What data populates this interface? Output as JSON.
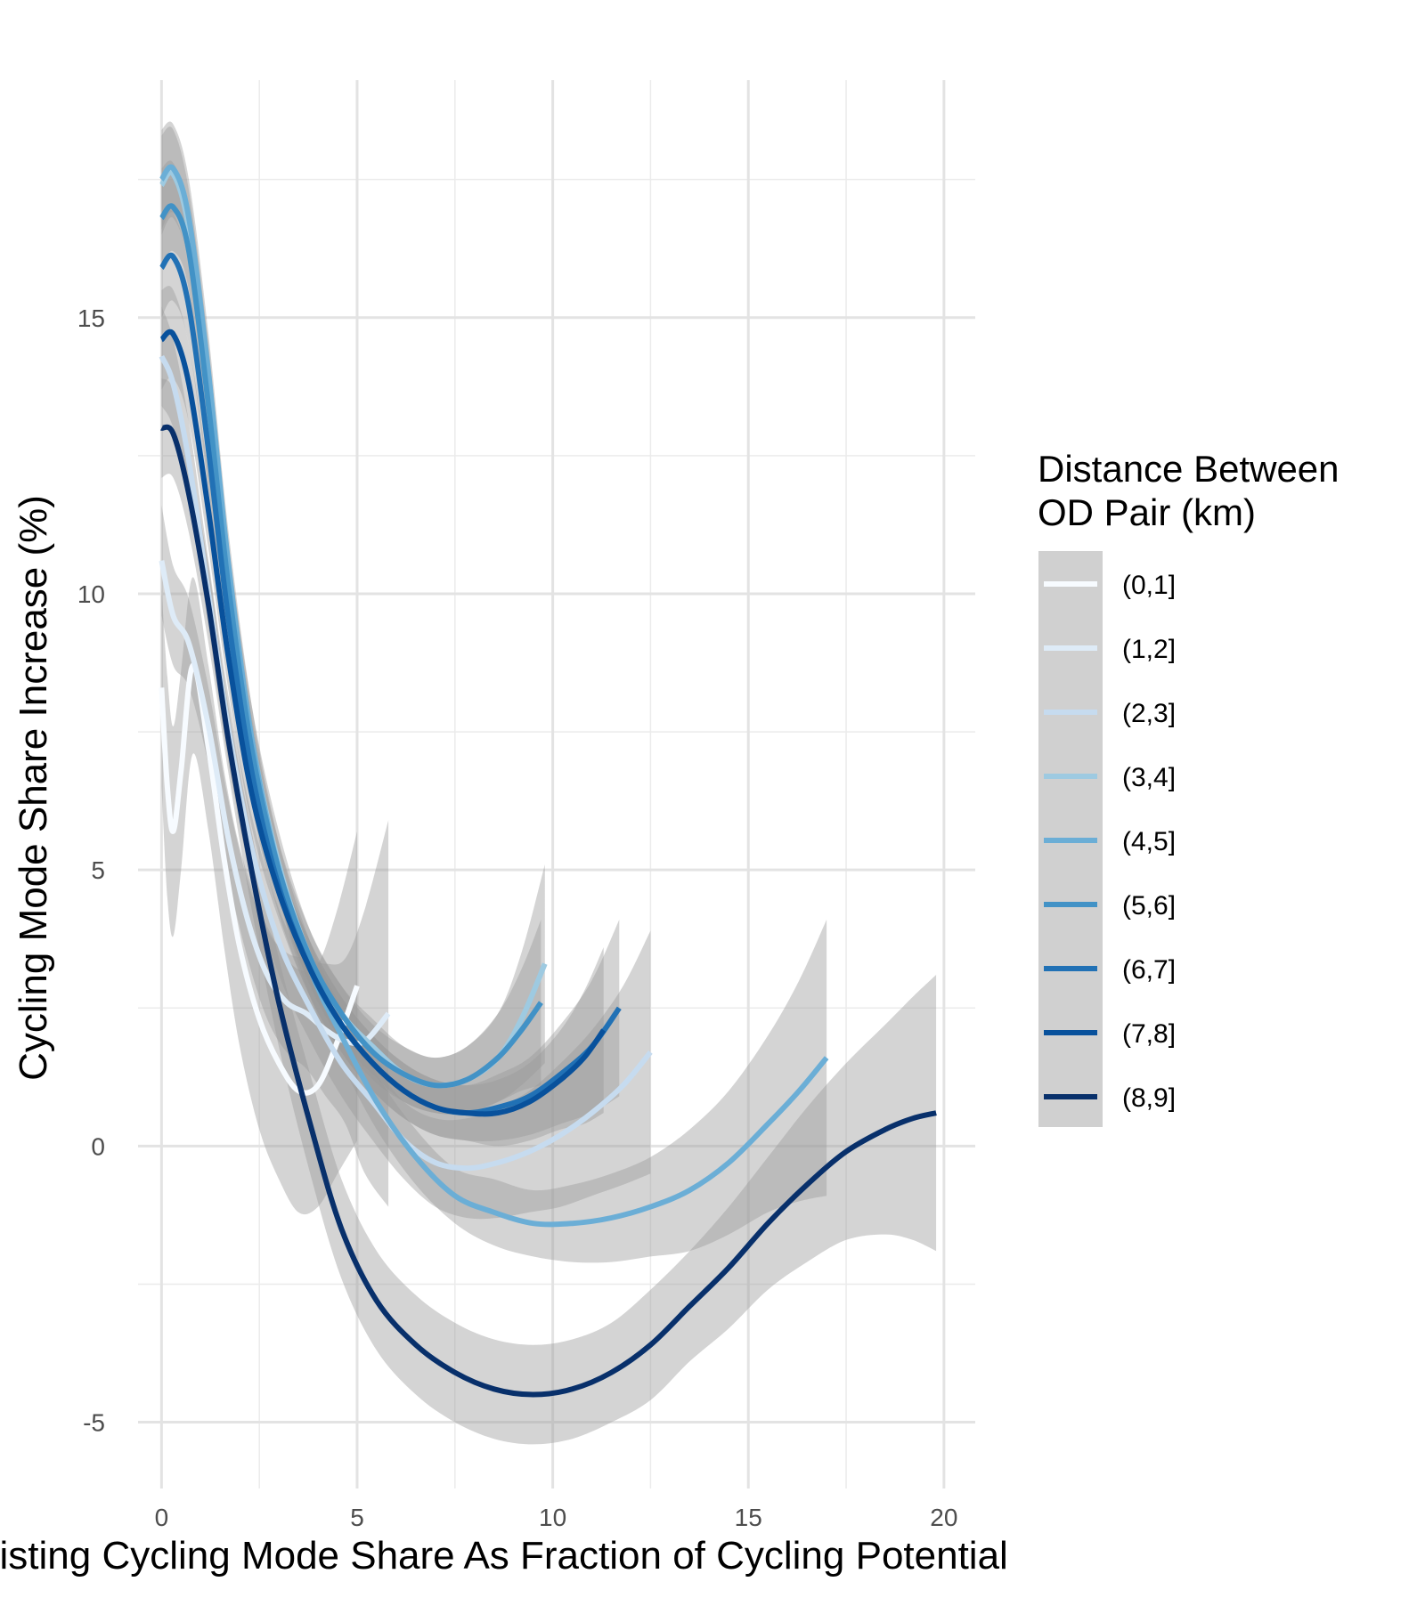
{
  "chart_data": {
    "type": "line",
    "title": "",
    "xlabel": "Existing Cycling Mode Share As Fraction of Cycling Potential",
    "ylabel": "Cycling Mode Share Increase (%)",
    "xlim": [
      -0.6,
      20.8
    ],
    "ylim": [
      -6.2,
      19.3
    ],
    "x_ticks": [
      0,
      5,
      10,
      15,
      20
    ],
    "x_tick_labels": [
      "0",
      "5",
      "10",
      "15",
      "20"
    ],
    "y_ticks": [
      -5,
      0,
      5,
      10,
      15
    ],
    "y_tick_labels": [
      "-5",
      "0",
      "5",
      "10",
      "15"
    ],
    "grid": true,
    "legend": {
      "title_lines": [
        "Distance Between",
        "OD Pair (km)"
      ],
      "position": "right"
    },
    "series": [
      {
        "name": "(0,1]",
        "color": "#f7fbff",
        "x": [
          0,
          0.15,
          0.3,
          0.5,
          0.8,
          1.2,
          1.6,
          2.0,
          2.5,
          3.0,
          3.5,
          4.0,
          4.5,
          5.0
        ],
        "y": [
          8.3,
          6.5,
          5.7,
          6.8,
          8.7,
          7.2,
          5.2,
          3.6,
          2.3,
          1.5,
          1.0,
          1.1,
          1.9,
          2.9
        ],
        "band": [
          1.8,
          2.0,
          1.9,
          1.8,
          1.6,
          1.5,
          1.6,
          1.8,
          2.0,
          2.1,
          2.2,
          2.2,
          2.4,
          2.8
        ]
      },
      {
        "name": "(1,2]",
        "color": "#deebf7",
        "x": [
          0,
          0.3,
          0.7,
          1.2,
          1.7,
          2.2,
          2.7,
          3.2,
          3.7,
          4.2,
          4.7,
          5.2,
          5.8
        ],
        "y": [
          10.6,
          9.6,
          9.1,
          7.6,
          5.6,
          4.1,
          3.1,
          2.6,
          2.4,
          2.1,
          1.9,
          1.9,
          2.4
        ],
        "band": [
          1.0,
          0.9,
          0.8,
          0.7,
          0.7,
          0.7,
          0.8,
          0.9,
          1.0,
          1.2,
          1.5,
          2.4,
          3.5
        ]
      },
      {
        "name": "(2,3]",
        "color": "#c6dbef",
        "x": [
          0,
          0.3,
          0.7,
          1.2,
          1.7,
          2.3,
          3,
          3.8,
          4.6,
          5.4,
          6.2,
          7,
          7.8,
          8.6,
          9.4,
          10.2,
          11,
          11.8,
          12.5
        ],
        "y": [
          14.3,
          13.8,
          12.4,
          10.0,
          7.6,
          5.4,
          3.7,
          2.5,
          1.5,
          0.8,
          0.1,
          -0.3,
          -0.4,
          -0.3,
          -0.1,
          0.2,
          0.6,
          1.1,
          1.7
        ],
        "band": [
          0.9,
          0.8,
          0.7,
          0.6,
          0.6,
          0.6,
          0.6,
          0.6,
          0.6,
          0.7,
          0.7,
          0.8,
          0.9,
          1.0,
          1.1,
          1.3,
          1.5,
          1.8,
          2.2
        ]
      },
      {
        "name": "(3,4]",
        "color": "#9ecae1",
        "x": [
          0,
          0.3,
          0.7,
          1.2,
          1.7,
          2.3,
          3,
          3.8,
          4.6,
          5.4,
          6.2,
          7,
          7.8,
          8.6,
          9.2,
          9.8
        ],
        "y": [
          17.4,
          17.6,
          16.6,
          13.8,
          10.4,
          7.4,
          5.1,
          3.4,
          2.4,
          1.8,
          1.3,
          1.1,
          1.2,
          1.6,
          2.3,
          3.3
        ],
        "band": [
          0.9,
          0.8,
          0.7,
          0.7,
          0.6,
          0.6,
          0.6,
          0.5,
          0.5,
          0.5,
          0.5,
          0.5,
          0.6,
          0.8,
          1.2,
          1.8
        ]
      },
      {
        "name": "(4,5]",
        "color": "#6baed6",
        "x": [
          0,
          0.3,
          0.7,
          1.2,
          1.7,
          2.3,
          3,
          3.8,
          4.6,
          5.5,
          6.5,
          7.5,
          8.5,
          9.5,
          10.5,
          11.5,
          12.5,
          13.5,
          14.5,
          15.5,
          16.3,
          17.0
        ],
        "y": [
          17.5,
          17.7,
          16.8,
          14.0,
          10.6,
          7.4,
          5.0,
          3.2,
          2.0,
          0.8,
          -0.2,
          -0.9,
          -1.2,
          -1.4,
          -1.4,
          -1.3,
          -1.1,
          -0.8,
          -0.3,
          0.4,
          1.0,
          1.6
        ],
        "band": [
          0.9,
          0.8,
          0.7,
          0.7,
          0.6,
          0.6,
          0.5,
          0.5,
          0.5,
          0.5,
          0.5,
          0.5,
          0.6,
          0.6,
          0.7,
          0.8,
          0.9,
          1.1,
          1.3,
          1.6,
          2.0,
          2.5
        ]
      },
      {
        "name": "(5,6]",
        "color": "#4292c6",
        "x": [
          0,
          0.3,
          0.7,
          1.2,
          1.7,
          2.3,
          3,
          3.8,
          4.6,
          5.4,
          6.2,
          7,
          7.8,
          8.6,
          9.2,
          9.7
        ],
        "y": [
          16.8,
          17.0,
          16.2,
          13.4,
          10.2,
          7.2,
          5.0,
          3.4,
          2.4,
          1.7,
          1.3,
          1.1,
          1.2,
          1.6,
          2.1,
          2.6
        ],
        "band": [
          0.9,
          0.8,
          0.7,
          0.7,
          0.6,
          0.6,
          0.5,
          0.5,
          0.5,
          0.5,
          0.5,
          0.5,
          0.6,
          0.8,
          1.1,
          1.5
        ]
      },
      {
        "name": "(6,7]",
        "color": "#2171b5",
        "x": [
          0,
          0.3,
          0.7,
          1.2,
          1.7,
          2.3,
          3,
          3.8,
          4.6,
          5.4,
          6.2,
          7,
          7.8,
          8.6,
          9.4,
          10.2,
          11,
          11.7
        ],
        "y": [
          15.9,
          16.1,
          15.2,
          12.6,
          9.6,
          6.8,
          4.7,
          3.2,
          2.2,
          1.5,
          1.0,
          0.7,
          0.6,
          0.7,
          0.9,
          1.3,
          1.8,
          2.5
        ],
        "band": [
          0.9,
          0.8,
          0.7,
          0.7,
          0.6,
          0.6,
          0.5,
          0.5,
          0.5,
          0.5,
          0.5,
          0.5,
          0.5,
          0.6,
          0.7,
          0.9,
          1.2,
          1.6
        ]
      },
      {
        "name": "(7,8]",
        "color": "#08519c",
        "x": [
          0,
          0.3,
          0.7,
          1.2,
          1.7,
          2.3,
          3,
          3.8,
          4.6,
          5.4,
          6.2,
          7,
          7.8,
          8.6,
          9.4,
          10.2,
          10.8,
          11.3
        ],
        "y": [
          14.6,
          14.7,
          13.8,
          11.5,
          8.9,
          6.4,
          4.6,
          3.2,
          2.2,
          1.5,
          1.0,
          0.7,
          0.6,
          0.6,
          0.8,
          1.2,
          1.6,
          2.1
        ],
        "band": [
          0.9,
          0.8,
          0.7,
          0.7,
          0.6,
          0.6,
          0.5,
          0.5,
          0.5,
          0.5,
          0.5,
          0.5,
          0.5,
          0.6,
          0.7,
          0.9,
          1.2,
          1.5
        ]
      },
      {
        "name": "(8,9]",
        "color": "#08306b",
        "x": [
          0,
          0.3,
          0.7,
          1.2,
          1.7,
          2.3,
          3,
          3.8,
          4.6,
          5.5,
          6.5,
          7.5,
          8.5,
          9.5,
          10.5,
          11.5,
          12.5,
          13.5,
          14.5,
          15.5,
          16.5,
          17.5,
          18.5,
          19.2,
          19.8
        ],
        "y": [
          13.0,
          12.9,
          11.8,
          9.8,
          7.4,
          5.0,
          2.6,
          0.4,
          -1.5,
          -2.8,
          -3.6,
          -4.1,
          -4.4,
          -4.5,
          -4.4,
          -4.1,
          -3.6,
          -2.9,
          -2.2,
          -1.4,
          -0.7,
          -0.1,
          0.3,
          0.5,
          0.6
        ],
        "band": [
          0.9,
          0.8,
          0.7,
          0.7,
          0.6,
          0.7,
          0.8,
          0.9,
          0.9,
          0.9,
          0.9,
          0.9,
          0.9,
          0.9,
          0.9,
          0.9,
          1.0,
          1.0,
          1.1,
          1.2,
          1.4,
          1.6,
          1.9,
          2.2,
          2.5
        ]
      }
    ]
  }
}
